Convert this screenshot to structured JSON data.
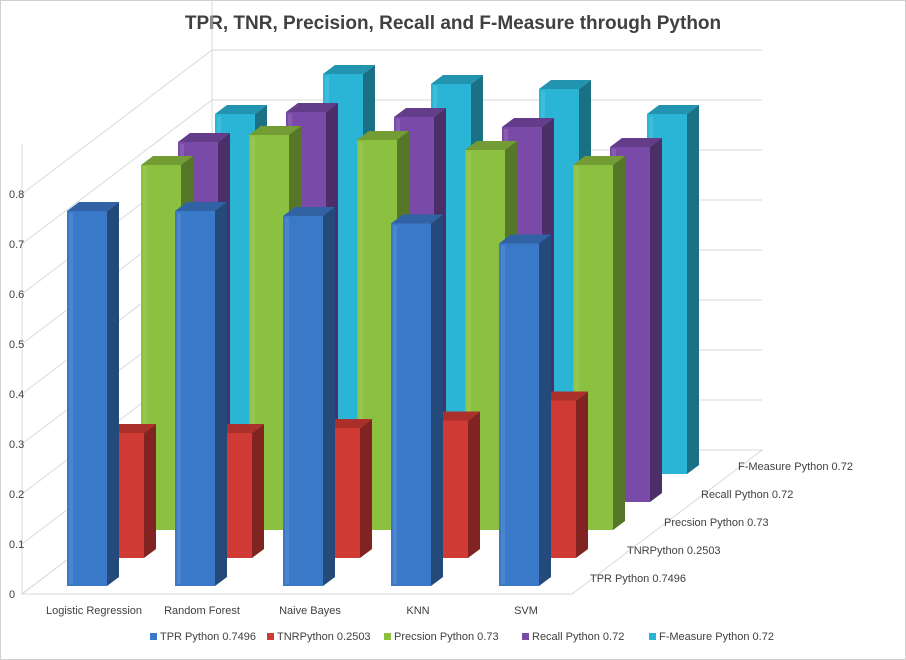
{
  "chart_data": {
    "type": "bar",
    "variant": "3d-column",
    "title": "TPR, TNR, Precision,  Recall and F-Measure through  Python",
    "xlabel": "",
    "ylabel": "",
    "categories": [
      "Logistic Regression",
      "Random Forest",
      "Naive Bayes",
      "KNN",
      "SVM"
    ],
    "series": [
      {
        "name": "TPR Python 0.7496",
        "values": [
          0.75,
          0.75,
          0.74,
          0.725,
          0.685
        ]
      },
      {
        "name": "TNRPython 0.2503",
        "values": [
          0.25,
          0.25,
          0.26,
          0.275,
          0.315
        ]
      },
      {
        "name": "Precsion Python 0.73",
        "values": [
          0.73,
          0.79,
          0.78,
          0.76,
          0.73
        ]
      },
      {
        "name": "Recall Python 0.72",
        "values": [
          0.72,
          0.78,
          0.77,
          0.75,
          0.71
        ]
      },
      {
        "name": "F-Measure Python 0.72",
        "values": [
          0.72,
          0.8,
          0.78,
          0.77,
          0.72
        ]
      }
    ],
    "yticks": [
      "0",
      "0.1",
      "0.2",
      "0.3",
      "0.4",
      "0.5",
      "0.6",
      "0.7",
      "0.8"
    ],
    "ylim": [
      0,
      0.8
    ],
    "grid": true,
    "legend_position": "bottom",
    "colors": [
      "#3a78c8",
      "#d03a35",
      "#8cc040",
      "#7a4aa8",
      "#2ab4d6"
    ]
  }
}
